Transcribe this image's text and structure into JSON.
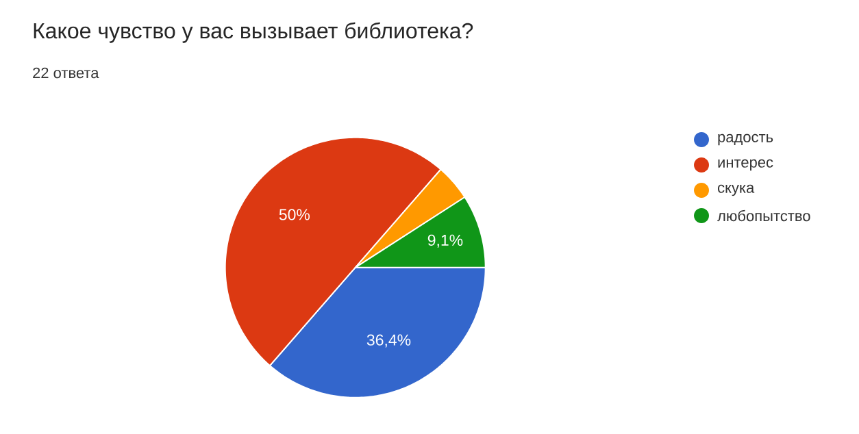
{
  "chart_data": {
    "type": "pie",
    "title": "Какое чувство у вас вызывает библиотека?",
    "subtitle": "22 ответа",
    "categories": [
      "радость",
      "интерес",
      "скука",
      "любопытство"
    ],
    "values": [
      36.4,
      50,
      4.5,
      9.1
    ],
    "colors": [
      "#3366cc",
      "#dc3912",
      "#ff9900",
      "#109618"
    ],
    "value_labels": [
      "36,4%",
      "50%",
      null,
      "9,1%"
    ],
    "legend": "right"
  }
}
